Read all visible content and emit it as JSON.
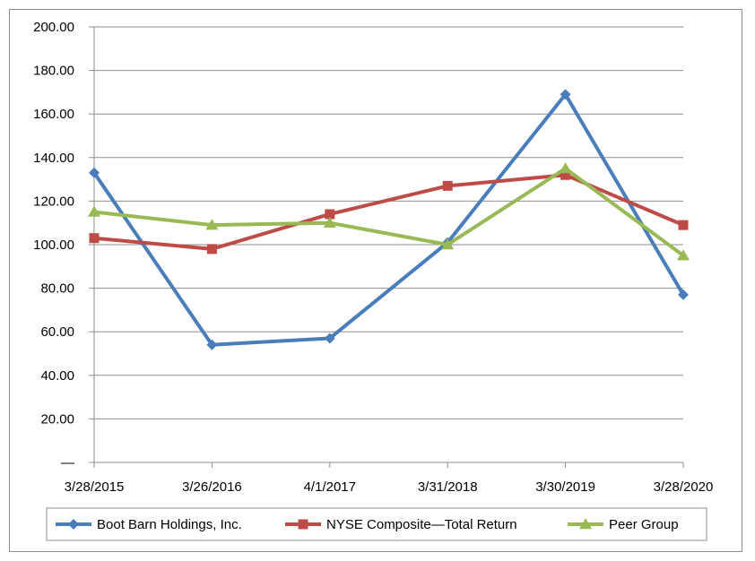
{
  "chart_data": {
    "type": "line",
    "title": "",
    "xlabel": "",
    "ylabel": "",
    "categories": [
      "3/28/2015",
      "3/26/2016",
      "4/1/2017",
      "3/31/2018",
      "3/30/2019",
      "3/28/2020"
    ],
    "ylim": [
      0,
      200
    ],
    "yticks": [
      "—",
      "20.00",
      "40.00",
      "60.00",
      "80.00",
      "100.00",
      "120.00",
      "140.00",
      "160.00",
      "180.00",
      "200.00"
    ],
    "grid": true,
    "legend_position": "bottom",
    "series": [
      {
        "name": "Boot Barn Holdings, Inc.",
        "color": "#4a7ebb",
        "marker": "diamond",
        "values": [
          133,
          54,
          57,
          101,
          169,
          77
        ]
      },
      {
        "name": "NYSE Composite—Total Return",
        "color": "#be4b48",
        "marker": "square",
        "values": [
          103,
          98,
          114,
          127,
          132,
          109
        ]
      },
      {
        "name": "Peer Group",
        "color": "#98b954",
        "marker": "triangle",
        "values": [
          115,
          109,
          110,
          100,
          135,
          95
        ]
      }
    ]
  }
}
